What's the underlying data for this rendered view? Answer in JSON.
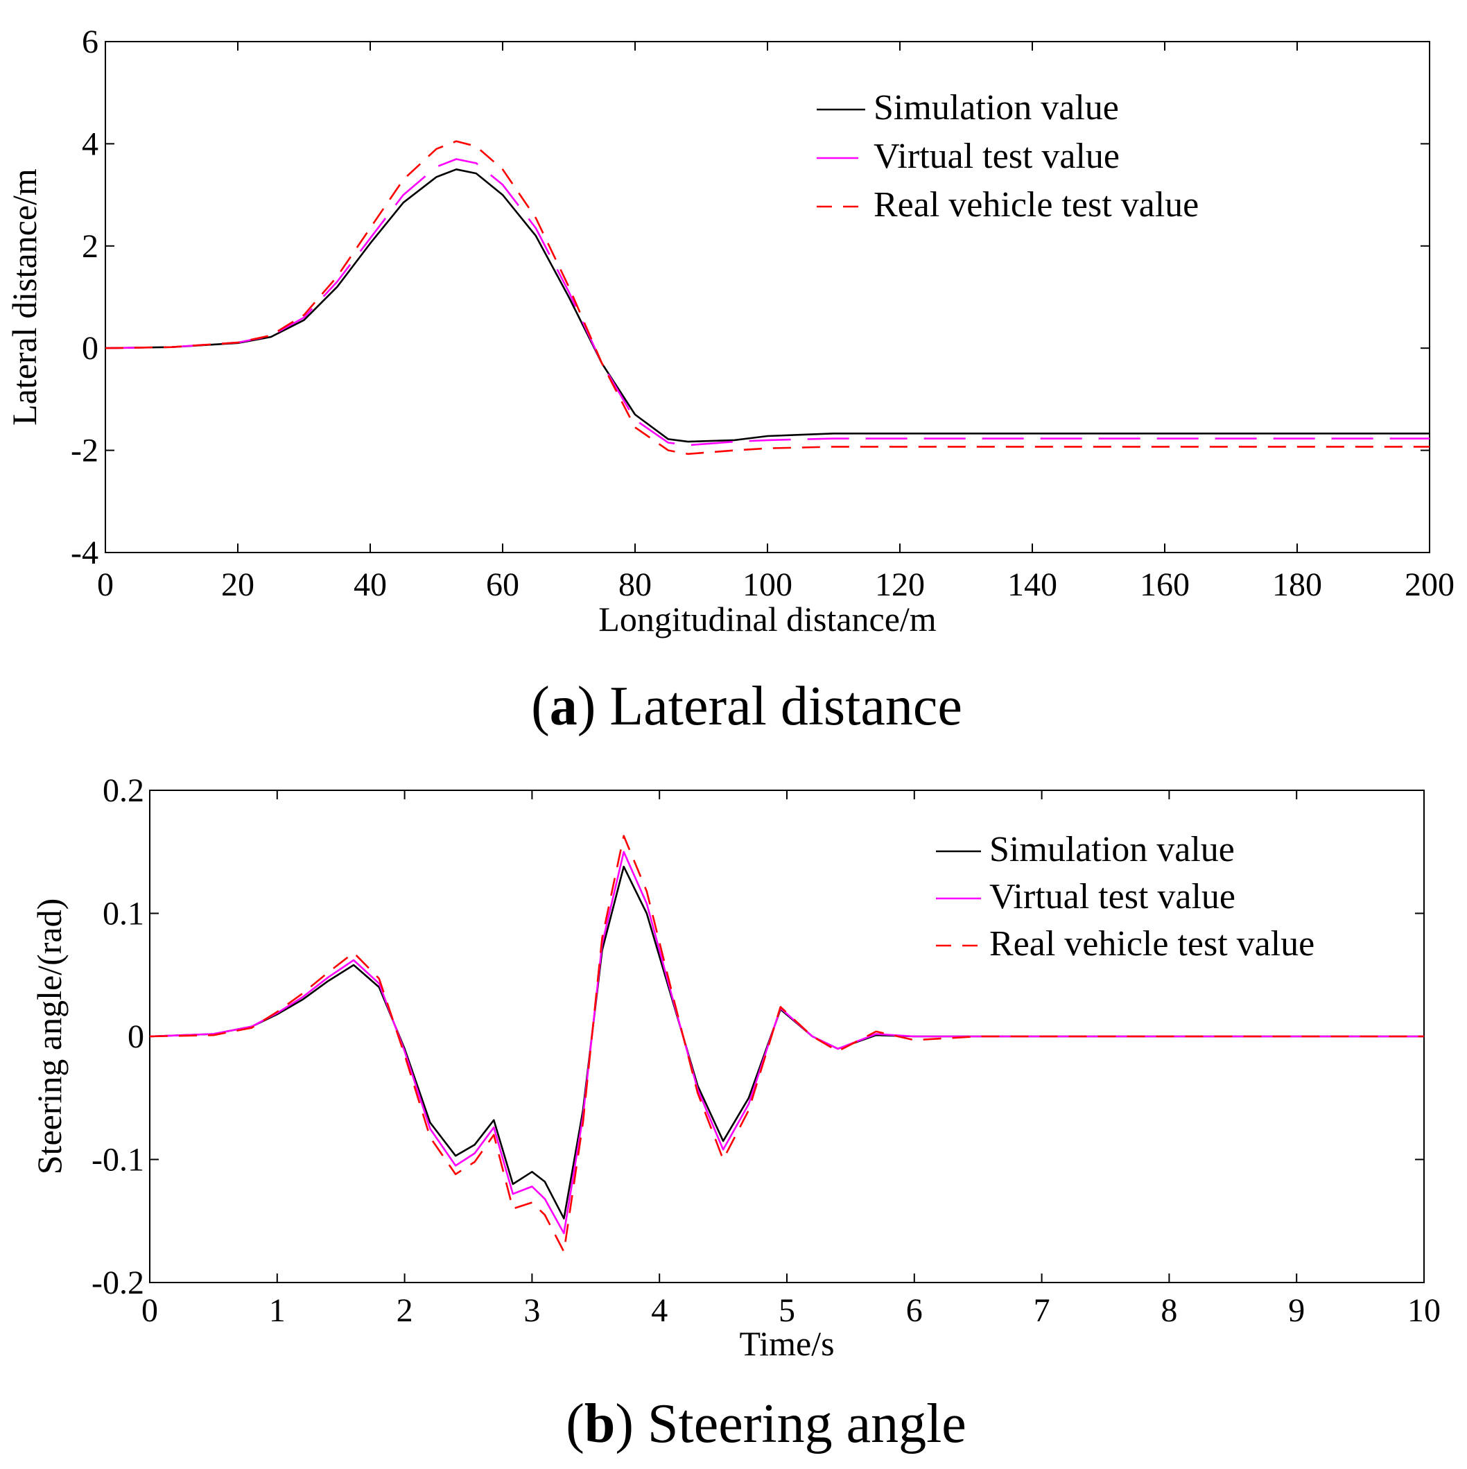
{
  "chart_data": [
    {
      "type": "line",
      "caption_letter": "a",
      "caption_text": "Lateral distance",
      "xlabel": "Longitudinal distance/m",
      "ylabel": "Lateral distance/m",
      "xlim": [
        0,
        200
      ],
      "ylim": [
        -4,
        6
      ],
      "xticks": [
        0,
        20,
        40,
        60,
        80,
        100,
        120,
        140,
        160,
        180,
        200
      ],
      "yticks": [
        -4,
        -2,
        0,
        2,
        4,
        6
      ],
      "grid": false,
      "legend_position": "top-right",
      "series": [
        {
          "name": "Simulation value",
          "color": "#000000",
          "style": "solid",
          "x": [
            0,
            10,
            20,
            25,
            30,
            35,
            40,
            45,
            50,
            53,
            56,
            60,
            65,
            70,
            75,
            80,
            85,
            88,
            95,
            100,
            110,
            150,
            200
          ],
          "y": [
            0,
            0.02,
            0.1,
            0.22,
            0.55,
            1.2,
            2.05,
            2.85,
            3.35,
            3.5,
            3.42,
            3.0,
            2.2,
            1.0,
            -0.3,
            -1.3,
            -1.78,
            -1.83,
            -1.8,
            -1.72,
            -1.67,
            -1.67,
            -1.67
          ]
        },
        {
          "name": "Virtual test value",
          "color": "#ff00ff",
          "style": "longdash",
          "x": [
            0,
            10,
            20,
            25,
            30,
            35,
            40,
            45,
            50,
            53,
            56,
            60,
            65,
            70,
            75,
            80,
            85,
            88,
            95,
            100,
            110,
            150,
            200
          ],
          "y": [
            0,
            0.02,
            0.11,
            0.24,
            0.6,
            1.3,
            2.15,
            3.0,
            3.55,
            3.7,
            3.62,
            3.2,
            2.35,
            1.1,
            -0.3,
            -1.4,
            -1.85,
            -1.9,
            -1.83,
            -1.8,
            -1.77,
            -1.77,
            -1.77
          ]
        },
        {
          "name": "Real vehicle test value",
          "color": "#ff0000",
          "style": "dashed",
          "x": [
            0,
            10,
            20,
            25,
            30,
            35,
            40,
            45,
            50,
            53,
            56,
            60,
            65,
            70,
            75,
            80,
            85,
            88,
            95,
            100,
            110,
            150,
            200
          ],
          "y": [
            0,
            0.02,
            0.11,
            0.25,
            0.65,
            1.4,
            2.35,
            3.3,
            3.9,
            4.05,
            3.95,
            3.5,
            2.55,
            1.2,
            -0.3,
            -1.55,
            -2.0,
            -2.07,
            -2.0,
            -1.96,
            -1.93,
            -1.93,
            -1.93
          ]
        }
      ]
    },
    {
      "type": "line",
      "caption_letter": "b",
      "caption_text": "Steering angle",
      "xlabel": "Time/s",
      "ylabel": "Steering angle/(rad)",
      "xlim": [
        0,
        10
      ],
      "ylim": [
        -0.2,
        0.2
      ],
      "xticks": [
        0,
        1,
        2,
        3,
        4,
        5,
        6,
        7,
        8,
        9,
        10
      ],
      "yticks": [
        -0.2,
        -0.1,
        0,
        0.1,
        0.2
      ],
      "ytick_labels": [
        "-0.2",
        "-0.1",
        "0",
        "0.1",
        "0.2"
      ],
      "grid": false,
      "legend_position": "top-right",
      "series": [
        {
          "name": "Simulation value",
          "color": "#000000",
          "style": "solid",
          "x": [
            0,
            0.5,
            0.8,
            1.0,
            1.2,
            1.4,
            1.6,
            1.8,
            2.0,
            2.2,
            2.4,
            2.55,
            2.7,
            2.85,
            3.0,
            3.1,
            3.25,
            3.4,
            3.55,
            3.72,
            3.9,
            4.1,
            4.3,
            4.5,
            4.7,
            4.95,
            5.2,
            5.4,
            5.7,
            6.0,
            6.5,
            10
          ],
          "y": [
            0,
            0.002,
            0.008,
            0.018,
            0.03,
            0.045,
            0.058,
            0.04,
            -0.01,
            -0.07,
            -0.097,
            -0.088,
            -0.068,
            -0.12,
            -0.11,
            -0.118,
            -0.148,
            -0.06,
            0.07,
            0.138,
            0.1,
            0.03,
            -0.04,
            -0.085,
            -0.05,
            0.022,
            0.0,
            -0.01,
            0.001,
            0.0,
            0.0,
            0.0
          ]
        },
        {
          "name": "Virtual test value",
          "color": "#ff00ff",
          "style": "solid",
          "x": [
            0,
            0.5,
            0.8,
            1.0,
            1.2,
            1.4,
            1.6,
            1.8,
            2.0,
            2.2,
            2.4,
            2.55,
            2.7,
            2.85,
            3.0,
            3.1,
            3.25,
            3.4,
            3.55,
            3.72,
            3.9,
            4.1,
            4.3,
            4.5,
            4.7,
            4.95,
            5.2,
            5.4,
            5.7,
            6.0,
            6.5,
            10
          ],
          "y": [
            0,
            0.002,
            0.008,
            0.019,
            0.032,
            0.048,
            0.062,
            0.043,
            -0.012,
            -0.075,
            -0.105,
            -0.095,
            -0.074,
            -0.128,
            -0.122,
            -0.132,
            -0.16,
            -0.065,
            0.075,
            0.15,
            0.108,
            0.032,
            -0.043,
            -0.092,
            -0.055,
            0.023,
            0.0,
            -0.01,
            0.002,
            0.0,
            0.0,
            0.0
          ]
        },
        {
          "name": "Real vehicle test value",
          "color": "#ff0000",
          "style": "dashed",
          "x": [
            0,
            0.5,
            0.8,
            1.0,
            1.2,
            1.4,
            1.6,
            1.8,
            2.0,
            2.2,
            2.4,
            2.55,
            2.7,
            2.85,
            3.0,
            3.1,
            3.25,
            3.4,
            3.55,
            3.72,
            3.9,
            4.1,
            4.3,
            4.5,
            4.7,
            4.95,
            5.2,
            5.4,
            5.7,
            6.0,
            6.5,
            10
          ],
          "y": [
            0,
            0.001,
            0.007,
            0.02,
            0.035,
            0.052,
            0.068,
            0.047,
            -0.015,
            -0.082,
            -0.112,
            -0.102,
            -0.08,
            -0.14,
            -0.135,
            -0.145,
            -0.175,
            -0.07,
            0.08,
            0.163,
            0.118,
            0.035,
            -0.046,
            -0.1,
            -0.06,
            0.024,
            0.0,
            -0.012,
            0.004,
            -0.003,
            0.0,
            0.0
          ]
        }
      ]
    }
  ]
}
